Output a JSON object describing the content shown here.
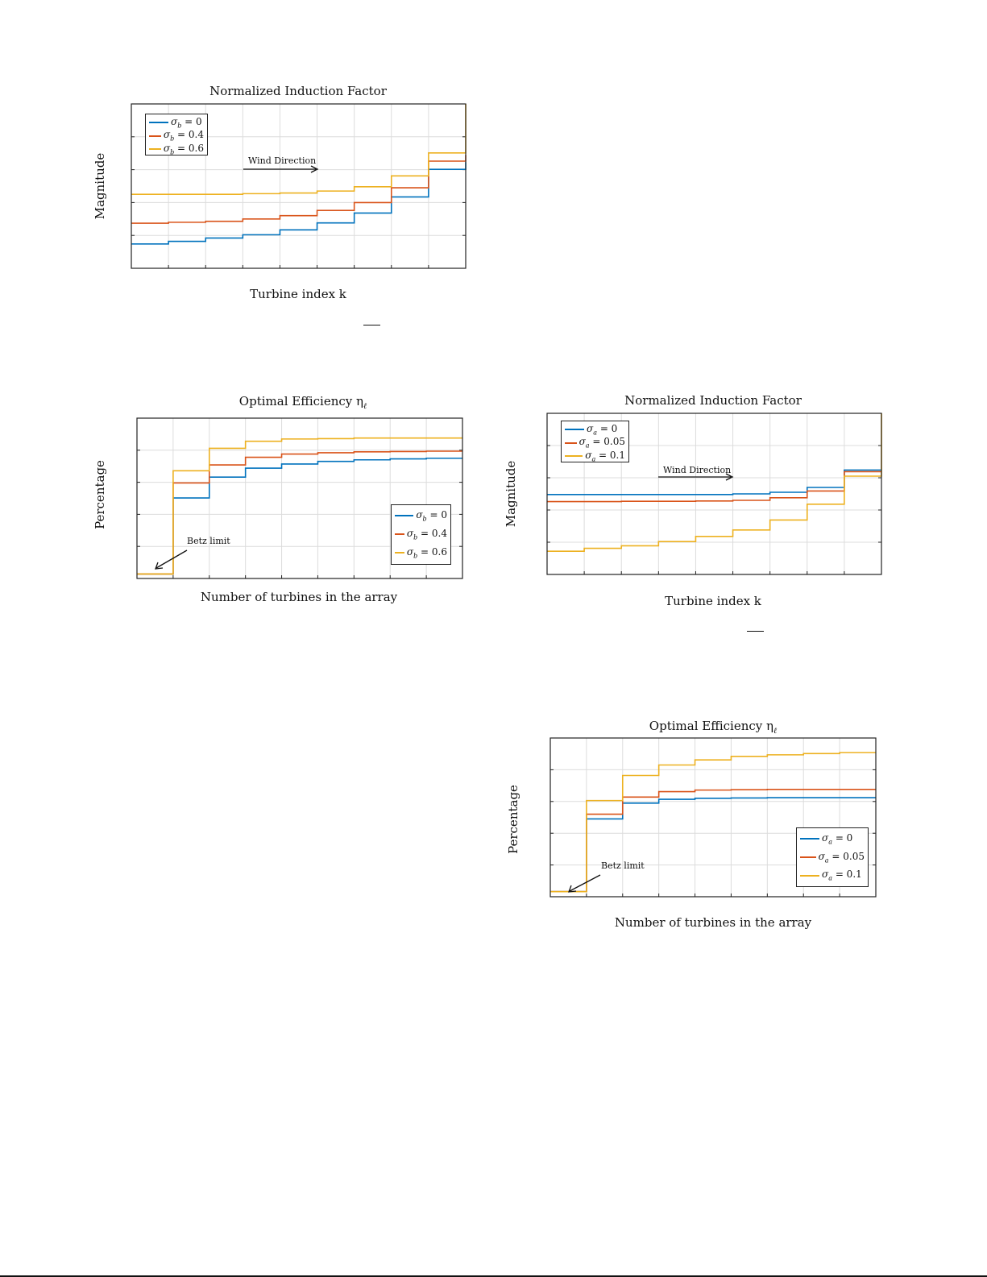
{
  "colors": {
    "blue": "#0072BD",
    "orange": "#D95319",
    "yellow": "#EDB120"
  },
  "chart_data": [
    {
      "type": "line",
      "step": true,
      "title": "Normalized Induction Factor",
      "xlabel": "Turbine index k",
      "ylabel": "Magnitude",
      "annotation": "Wind Direction",
      "grid": true,
      "legend_placement": "top-left",
      "x": [
        1,
        2,
        3,
        4,
        5,
        6,
        7,
        8,
        9
      ],
      "ylim": [
        0,
        5
      ],
      "series": [
        {
          "name": "σb = 0",
          "label_sym": "σ",
          "label_sub": "b",
          "label_val": "= 0",
          "color": "#0072BD",
          "values": [
            0.74,
            0.82,
            0.92,
            1.02,
            1.17,
            1.38,
            1.68,
            2.17,
            3.01
          ],
          "end": 3.23
        },
        {
          "name": "σb = 0.4",
          "label_sym": "σ",
          "label_sub": "b",
          "label_val": "= 0.4",
          "color": "#D95319",
          "values": [
            1.37,
            1.4,
            1.43,
            1.5,
            1.6,
            1.76,
            2.0,
            2.45,
            3.26
          ],
          "end": 3.45
        },
        {
          "name": "σb = 0.6",
          "label_sym": "σ",
          "label_sub": "b",
          "label_val": "= 0.6",
          "color": "#EDB120",
          "values": [
            2.25,
            2.25,
            2.25,
            2.27,
            2.29,
            2.35,
            2.48,
            2.81,
            3.51
          ],
          "end": 5
        }
      ]
    },
    {
      "type": "line",
      "step": true,
      "title": "Optimal Efficiency η",
      "title_sub": "ℓ",
      "xlabel": "Number of turbines in the array",
      "ylabel": "Percentage",
      "annotation": "Betz limit",
      "grid": true,
      "legend_placement": "bottom-right",
      "x": [
        1,
        2,
        3,
        4,
        5,
        6,
        7,
        8,
        9
      ],
      "ylim": [
        0,
        5
      ],
      "series": [
        {
          "name": "σb = 0",
          "label_sym": "σ",
          "label_sub": "b",
          "label_val": "= 0",
          "color": "#0072BD",
          "values": [
            0.14,
            2.51,
            3.16,
            3.44,
            3.57,
            3.65,
            3.7,
            3.73,
            3.75
          ]
        },
        {
          "name": "σb = 0.4",
          "label_sym": "σ",
          "label_sub": "b",
          "label_val": "= 0.4",
          "color": "#D95319",
          "values": [
            0.14,
            2.98,
            3.54,
            3.78,
            3.88,
            3.92,
            3.95,
            3.96,
            3.97
          ]
        },
        {
          "name": "σb = 0.6",
          "label_sym": "σ",
          "label_sub": "b",
          "label_val": "= 0.6",
          "color": "#EDB120",
          "values": [
            0.14,
            3.36,
            4.06,
            4.28,
            4.35,
            4.36,
            4.38,
            4.38,
            4.38
          ]
        }
      ]
    },
    {
      "type": "line",
      "step": true,
      "title": "Normalized Induction Factor",
      "xlabel": "Turbine index k",
      "ylabel": "Magnitude",
      "annotation": "Wind Direction",
      "grid": true,
      "legend_placement": "top-left",
      "x": [
        1,
        2,
        3,
        4,
        5,
        6,
        7,
        8,
        9
      ],
      "ylim": [
        0,
        5
      ],
      "series": [
        {
          "name": "σa = 0",
          "label_sym": "σ",
          "label_sub": "a",
          "label_val": "= 0",
          "color": "#0072BD",
          "values": [
            2.48,
            2.48,
            2.48,
            2.48,
            2.48,
            2.5,
            2.55,
            2.7,
            3.24
          ]
        },
        {
          "name": "σa = 0.05",
          "label_sym": "σ",
          "label_sub": "a",
          "label_val": "= 0.05",
          "color": "#D95319",
          "values": [
            2.26,
            2.26,
            2.27,
            2.27,
            2.28,
            2.3,
            2.38,
            2.59,
            3.19
          ]
        },
        {
          "name": "σa = 0.1",
          "label_sym": "σ",
          "label_sub": "a",
          "label_val": "= 0.1",
          "color": "#EDB120",
          "values": [
            0.72,
            0.81,
            0.89,
            1.02,
            1.18,
            1.38,
            1.69,
            2.18,
            3.05
          ],
          "end": 5
        }
      ]
    },
    {
      "type": "line",
      "step": true,
      "title": "Optimal Efficiency η",
      "title_sub": "ℓ",
      "xlabel": "Number of turbines in the array",
      "ylabel": "Percentage",
      "annotation": "Betz limit",
      "grid": true,
      "legend_placement": "bottom-right",
      "x": [
        1,
        2,
        3,
        4,
        5,
        6,
        7,
        8,
        9
      ],
      "ylim": [
        0,
        5
      ],
      "series": [
        {
          "name": "σa = 0",
          "label_sym": "σ",
          "label_sub": "a",
          "label_val": "= 0",
          "color": "#0072BD",
          "values": [
            0.16,
            2.45,
            2.95,
            3.07,
            3.1,
            3.11,
            3.12,
            3.12,
            3.12
          ]
        },
        {
          "name": "σa = 0.05",
          "label_sym": "σ",
          "label_sub": "a",
          "label_val": "= 0.05",
          "color": "#D95319",
          "values": [
            0.16,
            2.6,
            3.14,
            3.31,
            3.36,
            3.37,
            3.38,
            3.38,
            3.38
          ]
        },
        {
          "name": "σa = 0.1",
          "label_sym": "σ",
          "label_sub": "a",
          "label_val": "= 0.1",
          "color": "#EDB120",
          "values": [
            0.16,
            3.03,
            3.82,
            4.15,
            4.31,
            4.42,
            4.47,
            4.51,
            4.54
          ]
        }
      ]
    }
  ]
}
